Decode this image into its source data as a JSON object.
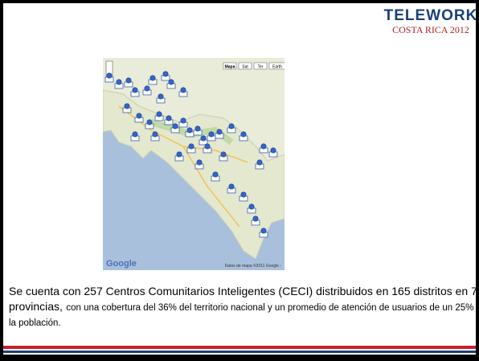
{
  "header": {
    "logo_title": "TELEWORK",
    "logo_subtitle": "COSTA RICA 2012"
  },
  "map": {
    "buttons": [
      "Mapa",
      "Sat",
      "Ter",
      "Earth"
    ],
    "brand": "Google",
    "attribution": "Datos de mapa ©2011 Google -"
  },
  "body": {
    "lead": "Se cuenta con 257 Centros Comunitarios Inteligentes (CECI) distribuidos en 165 distritos en 7 provincias,",
    "rest": "con una cobertura del 36% del territorio nacional y un promedio de atención de usuarios de un 25% de la población."
  }
}
